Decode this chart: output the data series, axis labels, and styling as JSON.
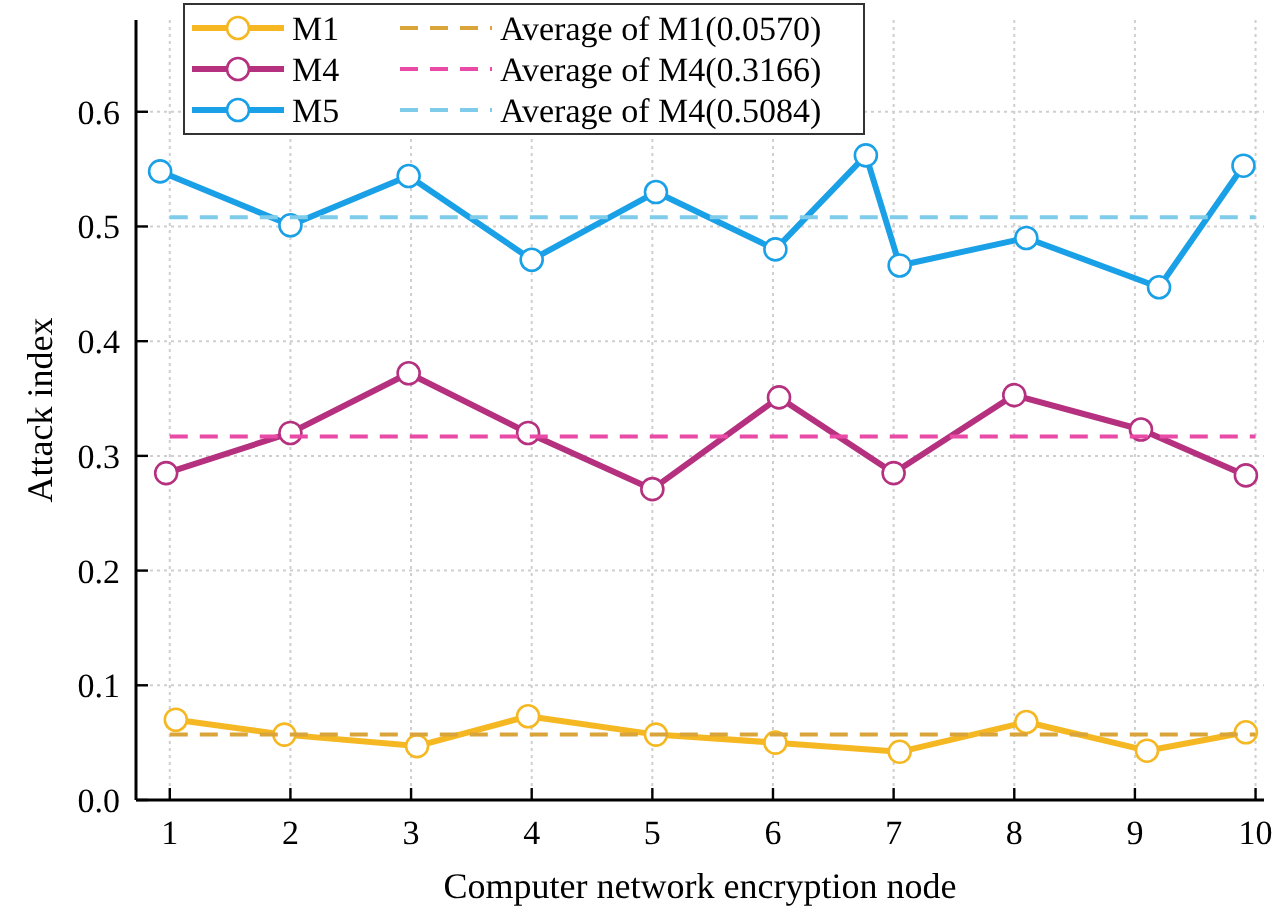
{
  "chart_data": {
    "type": "line",
    "xlabel": "Computer network encryption node",
    "ylabel": "Attack index",
    "xlim": [
      0.72,
      10.07
    ],
    "xticks": [
      1,
      2,
      3,
      4,
      5,
      6,
      7,
      8,
      9,
      10
    ],
    "ylim": [
      0,
      0.68
    ],
    "yticks": [
      {
        "value": 0,
        "label": "0.0"
      },
      {
        "value": 0.1,
        "label": "0.1"
      },
      {
        "value": 0.2,
        "label": "0.2"
      },
      {
        "value": 0.3,
        "label": "0.3"
      },
      {
        "value": 0.4,
        "label": "0.4"
      },
      {
        "value": 0.5,
        "label": "0.5"
      },
      {
        "value": 0.6,
        "label": "0.6"
      }
    ],
    "grid": true,
    "legend": "top left",
    "series": [
      {
        "name": "M1",
        "color": "#f5b823",
        "marker": "circle",
        "line_style": "solid",
        "x": [
          1.05,
          1.95,
          3.05,
          3.97,
          5.03,
          6.02,
          7.05,
          8.1,
          9.1,
          9.92
        ],
        "values": [
          0.07,
          0.057,
          0.047,
          0.073,
          0.057,
          0.05,
          0.042,
          0.068,
          0.043,
          0.059
        ]
      },
      {
        "name": "Average of M1(0.0570)",
        "color": "#d9a43a",
        "marker": "none",
        "line_style": "dashed",
        "x": [
          1,
          10
        ],
        "values": [
          0.057,
          0.057
        ]
      },
      {
        "name": "M4",
        "color": "#b5317f",
        "marker": "circle",
        "line_style": "solid",
        "x": [
          0.97,
          2,
          2.98,
          3.97,
          5,
          6.05,
          7,
          8,
          9.05,
          9.92
        ],
        "values": [
          0.285,
          0.32,
          0.372,
          0.32,
          0.271,
          0.351,
          0.285,
          0.353,
          0.323,
          0.283
        ]
      },
      {
        "name": "Average of M4(0.3166)",
        "color": "#e94aa6",
        "marker": "none",
        "line_style": "dashed",
        "x": [
          1,
          10
        ],
        "values": [
          0.317,
          0.317
        ]
      },
      {
        "name": "M5",
        "color": "#1aa0e6",
        "marker": "circle",
        "line_style": "solid",
        "x": [
          0.92,
          2,
          2.98,
          4,
          5.03,
          6.02,
          6.77,
          7.05,
          8.1,
          9.2,
          9.9
        ],
        "values": [
          0.548,
          0.501,
          0.544,
          0.471,
          0.53,
          0.48,
          0.562,
          0.466,
          0.49,
          0.447,
          0.553
        ]
      },
      {
        "name": "Average of M4(0.5084)",
        "color": "#7fcbea",
        "marker": "none",
        "line_style": "dashed",
        "x": [
          1,
          10
        ],
        "values": [
          0.508,
          0.508
        ]
      }
    ]
  }
}
